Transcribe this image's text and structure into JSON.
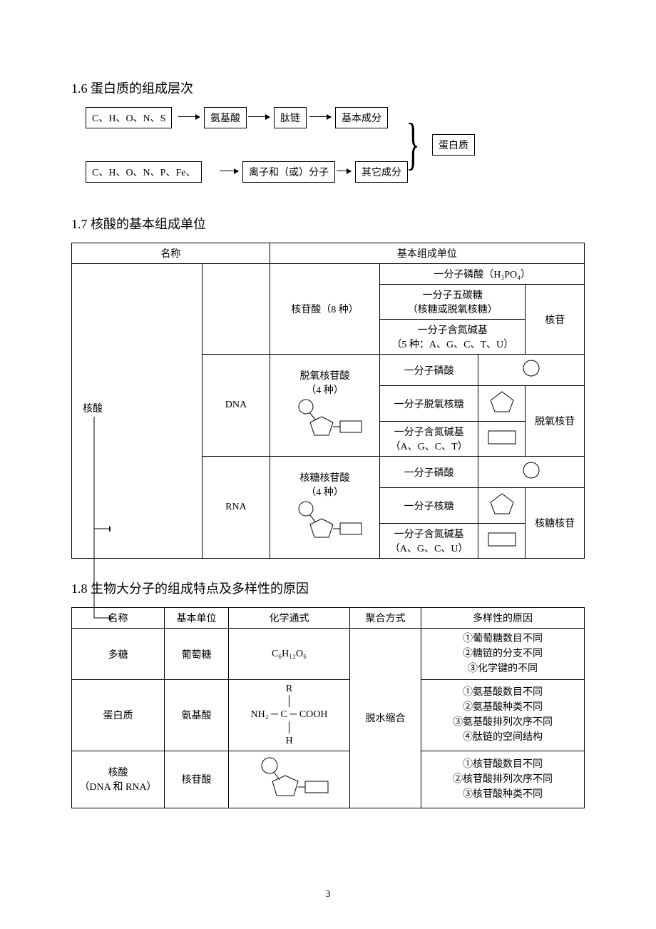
{
  "page_number": "3",
  "s16": {
    "heading": "1.6 蛋白质的组成层次",
    "row1": {
      "b1": "C、H、O、N、S",
      "b2": "氨基酸",
      "b3": "肽链",
      "b4": "基本成分"
    },
    "row2": {
      "b1": "C、H、O、N、P、Fe、",
      "b2": "离子和（或）分子",
      "b3": "其它成分"
    },
    "out": "蛋白质"
  },
  "s17": {
    "heading": "1.7 核酸的基本组成单位",
    "head_name": "名称",
    "head_unit": "基本组成单位",
    "name_root": "核酸",
    "name_dna": "DNA",
    "name_rna": "RNA",
    "row_hesuan_unit": "核苷酸（8 种）",
    "row_hesuan_c1": "一分子磷酸（H₃PO₄）",
    "row_hesuan_c2a": "一分子五碳糖",
    "row_hesuan_c2b": "（核糖或脱氧核糖）",
    "row_hesuan_c3a": "一分子含氮碱基",
    "row_hesuan_c3b": "（5 种：A、G、C、T、U）",
    "row_hesuan_right": "核苷",
    "dna_unit_a": "脱氧核苷酸",
    "dna_unit_b": "（4 种）",
    "dna_c1": "一分子磷酸",
    "dna_c2": "一分子脱氧核糖",
    "dna_c3a": "一分子含氮碱基",
    "dna_c3b": "（A、G、C、T）",
    "dna_right": "脱氧核苷",
    "rna_unit_a": "核糖核苷酸",
    "rna_unit_b": "（4 种）",
    "rna_c1": "一分子磷酸",
    "rna_c2": "一分子核糖",
    "rna_c3a": "一分子含氮碱基",
    "rna_c3b": "（A、G、C、U）",
    "rna_right": "核糖核苷"
  },
  "s18": {
    "heading": "1.8 生物大分子的组成特点及多样性的原因",
    "h1": "名称",
    "h2": "基本单位",
    "h3": "化学通式",
    "h4": "聚合方式",
    "h5": "多样性的原因",
    "r1_name": "多糖",
    "r1_unit": "葡萄糖",
    "r1_formula": "C₆H₁₂O₆",
    "r1_reasons": "①葡萄糖数目不同\n②糖链的分支不同\n③化学键的不同",
    "r2_name": "蛋白质",
    "r2_unit": "氨基酸",
    "r2_reasons": "①氨基酸数目不同\n②氨基酸种类不同\n③氨基酸排列次序不同\n④肽链的空间结构",
    "r3_name_a": "核酸",
    "r3_name_b": "（DNA 和 RNA）",
    "r3_unit": "核苷酸",
    "r3_reasons": "①核苷酸数目不同\n②核苷酸排列次序不同\n③核苷酸种类不同",
    "poly": "脱水缩合",
    "aa_r": "R",
    "aa_nh2": "NH₂",
    "aa_c": "C",
    "aa_cooh": "COOH",
    "aa_h": "H"
  }
}
